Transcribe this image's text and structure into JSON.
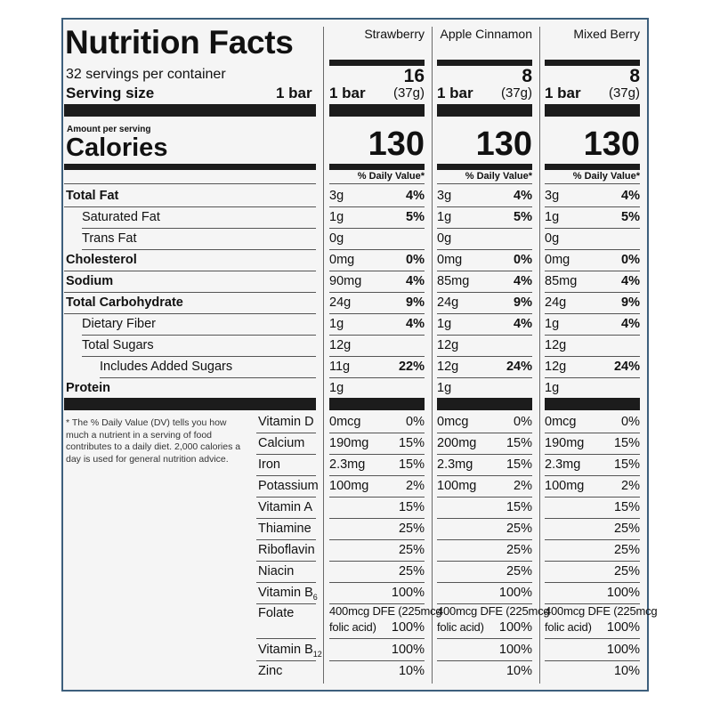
{
  "title": "Nutrition Facts",
  "servings_per_container": "32 servings per container",
  "serving_size_label": "Serving size",
  "serving_size_value": "1 bar",
  "amount_per_serving": "Amount per serving",
  "calories_label": "Calories",
  "daily_value_header": "% Daily Value*",
  "footnote": "* The % Daily Value (DV) tells you how much a nutrient in a serving of food contributes to a daily diet. 2,000 calories a day is used for general nutrition advice.",
  "columns": [
    {
      "flavor": "Strawberry",
      "count": "16",
      "serving": "1 bar",
      "grams": "(37g)",
      "calories": "130",
      "nutrients": [
        [
          "3g",
          "4%"
        ],
        [
          "1g",
          "5%"
        ],
        [
          "0g",
          ""
        ],
        [
          "0mg",
          "0%"
        ],
        [
          "90mg",
          "4%"
        ],
        [
          "24g",
          "9%"
        ],
        [
          "1g",
          "4%"
        ],
        [
          "12g",
          ""
        ],
        [
          "11g",
          "22%"
        ],
        [
          "1g",
          ""
        ]
      ],
      "vitamins": [
        [
          "0mcg",
          "0%"
        ],
        [
          "190mg",
          "15%"
        ],
        [
          "2.3mg",
          "15%"
        ],
        [
          "100mg",
          "2%"
        ],
        [
          "",
          "15%"
        ],
        [
          "",
          "25%"
        ],
        [
          "",
          "25%"
        ],
        [
          "",
          "25%"
        ],
        [
          "",
          "100%"
        ],
        [
          "",
          "100%"
        ],
        [
          "",
          "10%"
        ]
      ]
    },
    {
      "flavor": "Apple Cinnamon",
      "count": "8",
      "serving": "1 bar",
      "grams": "(37g)",
      "calories": "130",
      "nutrients": [
        [
          "3g",
          "4%"
        ],
        [
          "1g",
          "5%"
        ],
        [
          "0g",
          ""
        ],
        [
          "0mg",
          "0%"
        ],
        [
          "85mg",
          "4%"
        ],
        [
          "24g",
          "9%"
        ],
        [
          "1g",
          "4%"
        ],
        [
          "12g",
          ""
        ],
        [
          "12g",
          "24%"
        ],
        [
          "1g",
          ""
        ]
      ],
      "vitamins": [
        [
          "0mcg",
          "0%"
        ],
        [
          "200mg",
          "15%"
        ],
        [
          "2.3mg",
          "15%"
        ],
        [
          "100mg",
          "2%"
        ],
        [
          "",
          "15%"
        ],
        [
          "",
          "25%"
        ],
        [
          "",
          "25%"
        ],
        [
          "",
          "25%"
        ],
        [
          "",
          "100%"
        ],
        [
          "",
          "100%"
        ],
        [
          "",
          "10%"
        ]
      ]
    },
    {
      "flavor": "Mixed Berry",
      "count": "8",
      "serving": "1 bar",
      "grams": "(37g)",
      "calories": "130",
      "nutrients": [
        [
          "3g",
          "4%"
        ],
        [
          "1g",
          "5%"
        ],
        [
          "0g",
          ""
        ],
        [
          "0mg",
          "0%"
        ],
        [
          "85mg",
          "4%"
        ],
        [
          "24g",
          "9%"
        ],
        [
          "1g",
          "4%"
        ],
        [
          "12g",
          ""
        ],
        [
          "12g",
          "24%"
        ],
        [
          "1g",
          ""
        ]
      ],
      "vitamins": [
        [
          "0mcg",
          "0%"
        ],
        [
          "190mg",
          "15%"
        ],
        [
          "2.3mg",
          "15%"
        ],
        [
          "100mg",
          "2%"
        ],
        [
          "",
          "15%"
        ],
        [
          "",
          "25%"
        ],
        [
          "",
          "25%"
        ],
        [
          "",
          "25%"
        ],
        [
          "",
          "100%"
        ],
        [
          "",
          "100%"
        ],
        [
          "",
          "10%"
        ]
      ]
    }
  ],
  "nutrient_labels": [
    {
      "label": "Total Fat",
      "bold": true,
      "indent": 0
    },
    {
      "label": "Saturated Fat",
      "bold": false,
      "indent": 1
    },
    {
      "label": "Trans Fat",
      "bold": false,
      "indent": 1
    },
    {
      "label": "Cholesterol",
      "bold": true,
      "indent": 0
    },
    {
      "label": "Sodium",
      "bold": true,
      "indent": 0
    },
    {
      "label": "Total Carbohydrate",
      "bold": true,
      "indent": 0
    },
    {
      "label": "Dietary Fiber",
      "bold": false,
      "indent": 1
    },
    {
      "label": "Total Sugars",
      "bold": false,
      "indent": 1
    },
    {
      "label": "Includes Added Sugars",
      "bold": false,
      "indent": 2
    },
    {
      "label": "Protein",
      "bold": true,
      "indent": 0
    }
  ],
  "vitamin_labels": [
    {
      "label": "Vitamin D"
    },
    {
      "label": "Calcium"
    },
    {
      "label": "Iron"
    },
    {
      "label": "Potassium"
    },
    {
      "label": "Vitamin A"
    },
    {
      "label": "Thiamine"
    },
    {
      "label": "Riboflavin"
    },
    {
      "label": "Niacin"
    },
    {
      "label": "Vitamin B",
      "sub": "6"
    },
    {
      "label": "Vitamin B",
      "sub": "12"
    },
    {
      "label": "Zinc"
    }
  ],
  "folate": {
    "label": "Folate",
    "line1": "400mcg DFE (225mcg",
    "line2": "folic acid)",
    "pct": "100%"
  }
}
